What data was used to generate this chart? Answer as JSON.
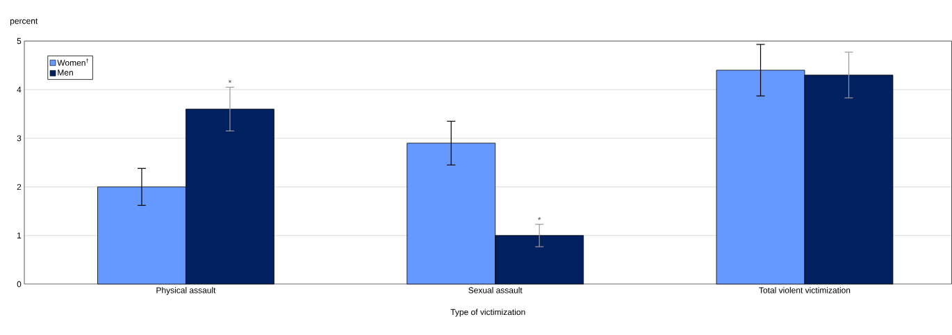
{
  "chart_data": {
    "type": "bar",
    "xlabel": "Type of victimization",
    "ylabel": "percent",
    "categories": [
      "Physical assault",
      "Sexual assault",
      "Total violent victimization"
    ],
    "series": [
      {
        "name": "Women$^{†}$",
        "color": "#6699ff",
        "values": [
          2.0,
          2.9,
          4.4
        ],
        "errors": [
          0.38,
          0.45,
          0.53
        ]
      },
      {
        "name": "Men",
        "color": "#002060",
        "values": [
          3.6,
          1.0,
          4.3
        ],
        "errors": [
          0.45,
          0.23,
          0.47
        ],
        "value_labels": [
          "*",
          "*",
          null
        ]
      }
    ],
    "ylim": [
      0,
      5
    ],
    "yticks": [
      0,
      1,
      2,
      3,
      4,
      5
    ],
    "grid": "y",
    "legend": "top left"
  }
}
